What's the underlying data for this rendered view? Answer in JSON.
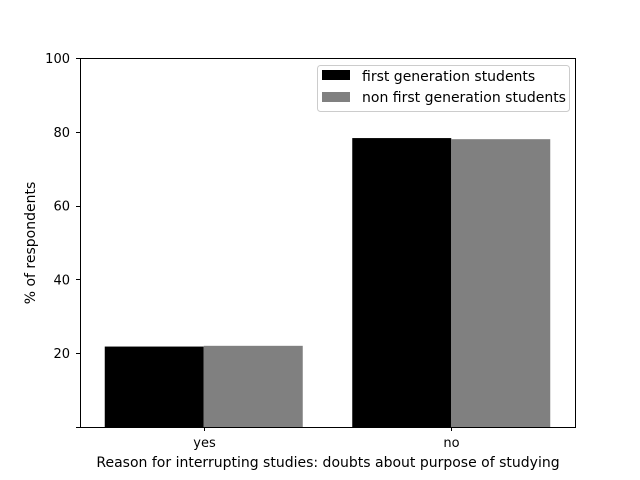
{
  "chart_data": {
    "type": "bar",
    "categories": [
      "yes",
      "no"
    ],
    "series": [
      {
        "name": "first generation students",
        "values": [
          21.8,
          78.3
        ],
        "color": "#000000"
      },
      {
        "name": "non first generation students",
        "values": [
          22.0,
          78.0
        ],
        "color": "#808080"
      }
    ],
    "xlabel": "Reason for interrupting studies: doubts about purpose of studying",
    "ylabel": "% of respondents",
    "ylim": [
      0,
      100
    ],
    "yticks": [
      20,
      40,
      60,
      80,
      100
    ],
    "grid": false,
    "legend_position": "top-right"
  }
}
